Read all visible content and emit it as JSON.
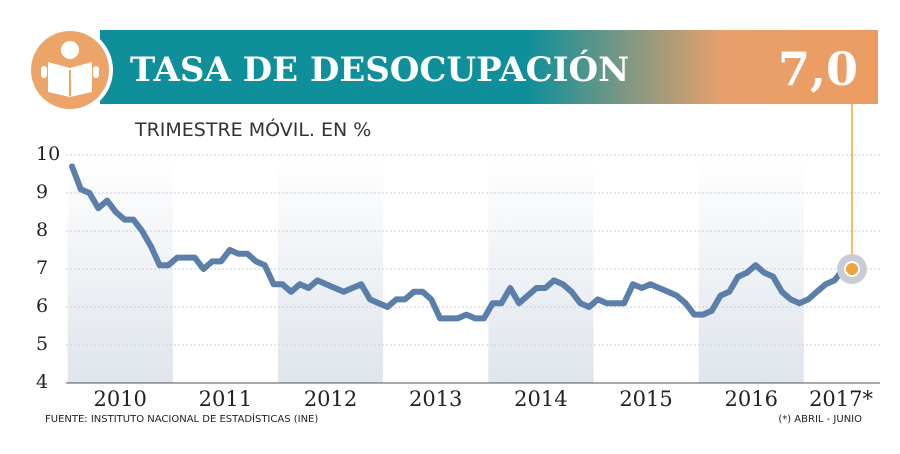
{
  "chart_data": {
    "type": "line",
    "title": "TASA DE DESOCUPACIÓN",
    "subtitle": "TRIMESTRE MÓVIL. EN %",
    "source": "FUENTE: INSTITUTO NACIONAL DE ESTADÍSTICAS (INE)",
    "note": "(*) ABRIL - JUNIO",
    "year_labels": [
      "2010",
      "2011",
      "2012",
      "2013",
      "2014",
      "2015",
      "2016",
      "2017*"
    ],
    "color": "#5b7fa8",
    "highlight_color": "#f2a33a",
    "values": [
      9.7,
      9.1,
      9.0,
      8.6,
      8.8,
      8.5,
      8.3,
      8.3,
      8.0,
      7.6,
      7.1,
      7.1,
      7.3,
      7.3,
      7.3,
      7.0,
      7.2,
      7.2,
      7.5,
      7.4,
      7.4,
      7.2,
      7.1,
      6.6,
      6.6,
      6.4,
      6.6,
      6.5,
      6.7,
      6.6,
      6.5,
      6.4,
      6.5,
      6.6,
      6.2,
      6.1,
      6.0,
      6.2,
      6.2,
      6.4,
      6.4,
      6.2,
      5.7,
      5.7,
      5.7,
      5.8,
      5.7,
      5.7,
      6.1,
      6.1,
      6.5,
      6.1,
      6.3,
      6.5,
      6.5,
      6.7,
      6.6,
      6.4,
      6.1,
      6.0,
      6.2,
      6.1,
      6.1,
      6.1,
      6.6,
      6.5,
      6.6,
      6.5,
      6.4,
      6.3,
      6.1,
      5.8,
      5.8,
      5.9,
      6.3,
      6.4,
      6.8,
      6.9,
      7.1,
      6.9,
      6.8,
      6.4,
      6.2,
      6.1,
      6.2,
      6.4,
      6.6,
      6.7,
      7.0,
      7.0
    ],
    "value_labels": [
      null,
      null,
      null,
      null,
      null,
      null,
      null,
      null,
      null,
      null,
      null,
      null,
      null,
      null,
      null,
      null,
      null,
      null,
      null,
      null,
      null,
      null,
      null,
      null,
      null,
      null,
      null,
      null,
      null,
      null,
      null,
      null,
      null,
      null,
      null,
      null,
      null,
      null,
      null,
      null,
      null,
      null,
      null,
      null,
      null,
      null,
      null,
      null,
      null,
      null,
      null,
      null,
      null,
      null,
      null,
      null,
      null,
      null,
      null,
      null,
      null,
      null,
      null,
      null,
      null,
      null,
      null,
      null,
      null,
      null,
      null,
      null,
      null,
      null,
      null,
      null,
      null,
      null,
      null,
      null,
      null,
      null,
      null,
      null,
      null,
      null,
      null,
      null,
      null,
      "7,0"
    ],
    "ylim": [
      4,
      10
    ],
    "yticks": [
      4,
      5,
      6,
      7,
      8,
      9,
      10
    ],
    "grid": true
  }
}
